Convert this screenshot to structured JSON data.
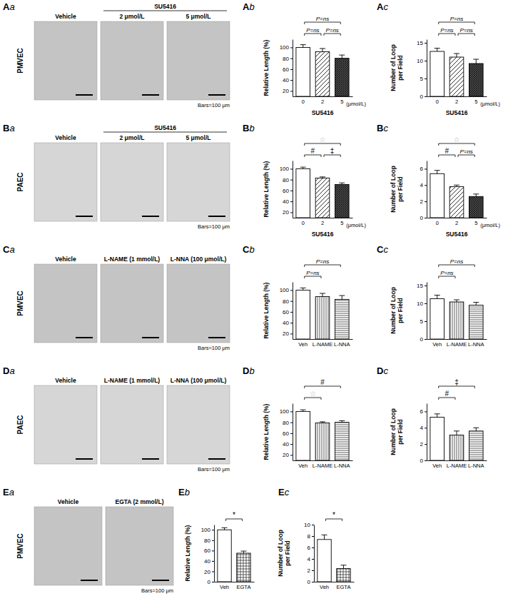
{
  "images": [
    {
      "panel": "Aa",
      "row_label": "PMVEC",
      "columns": [
        "Vehicle",
        "2 μmol/L",
        "5 μmol/L"
      ],
      "group": {
        "label": "SU5416",
        "columns": [
          "2 μmol/L",
          "5 μmol/L"
        ]
      },
      "scale_bar": "Bars=100 μm"
    },
    {
      "panel": "Ba",
      "row_label": "PAEC",
      "columns": [
        "Vehicle",
        "2 μmol/L",
        "5 μmol/L"
      ],
      "group": {
        "label": "SU5416",
        "columns": [
          "2 μmol/L",
          "5 μmol/L"
        ]
      },
      "scale_bar": "Bars=100 μm"
    },
    {
      "panel": "Ca",
      "row_label": "PMVEC",
      "columns": [
        "Vehicle",
        "L-NAME (1 mmol/L)",
        "L-NNA (100 μmol/L)"
      ],
      "scale_bar": "Bars=100 μm"
    },
    {
      "panel": "Da",
      "row_label": "PAEC",
      "columns": [
        "Vehicle",
        "L-NAME (1 mmol/L)",
        "L-NNA (100 μmol/L)"
      ],
      "scale_bar": "Bars=100 μm"
    },
    {
      "panel": "Ea",
      "row_label": "PMVEC",
      "columns": [
        "Vehicle",
        "EGTA (2 mmol/L)"
      ],
      "scale_bar": "Bars=100 μm"
    }
  ],
  "chart_data": [
    {
      "panel": "Ab",
      "type": "bar",
      "y_label": "Relative Length (%)",
      "x_label": "SU5416",
      "x_unit": "(μmol/L)",
      "categories": [
        "0",
        "2",
        "5"
      ],
      "values": [
        100,
        92,
        80
      ],
      "errors": [
        5,
        6,
        6
      ],
      "ylim": [
        10,
        115
      ],
      "yticks": [
        20,
        40,
        60,
        80,
        100
      ],
      "annotations": [
        {
          "between": [
            "0",
            "5"
          ],
          "label": "P=ns"
        },
        {
          "between": [
            "0",
            "2"
          ],
          "label": "P=ns"
        },
        {
          "between": [
            "2",
            "5"
          ],
          "label": "P=ns"
        }
      ]
    },
    {
      "panel": "Ac",
      "type": "bar",
      "y_label": "Number of Loop per Field",
      "x_label": "SU5416",
      "x_unit": "(μmol/L)",
      "categories": [
        "0",
        "2",
        "5"
      ],
      "values": [
        12.6,
        11,
        9.2
      ],
      "errors": [
        0.9,
        1,
        1.2
      ],
      "ylim": [
        0,
        16
      ],
      "yticks": [
        0,
        5,
        10,
        15
      ],
      "annotations": [
        {
          "between": [
            "0",
            "5"
          ],
          "label": "P=ns"
        },
        {
          "between": [
            "0",
            "2"
          ],
          "label": "P=ns"
        },
        {
          "between": [
            "2",
            "5"
          ],
          "label": "P=ns"
        }
      ]
    },
    {
      "panel": "Bb",
      "type": "bar",
      "y_label": "Relative Length (%)",
      "x_label": "SU5416",
      "x_unit": "(μmol/L)",
      "categories": [
        "0",
        "2",
        "5"
      ],
      "values": [
        100,
        83,
        71
      ],
      "errors": [
        3,
        2,
        3
      ],
      "ylim": [
        10,
        115
      ],
      "yticks": [
        20,
        40,
        60,
        80,
        100
      ],
      "annotations": [
        {
          "between": [
            "0",
            "5"
          ],
          "label": "☆"
        },
        {
          "between": [
            "0",
            "2"
          ],
          "label": "#"
        },
        {
          "between": [
            "2",
            "5"
          ],
          "label": "‡"
        }
      ]
    },
    {
      "panel": "Bc",
      "type": "bar",
      "y_label": "Number of Loop per Field",
      "x_label": "SU5416",
      "x_unit": "(μmol/L)",
      "categories": [
        "0",
        "2",
        "5"
      ],
      "values": [
        5.4,
        3.8,
        2.6
      ],
      "errors": [
        0.4,
        0.2,
        0.3
      ],
      "ylim": [
        0,
        7
      ],
      "yticks": [
        0,
        2,
        4,
        6
      ],
      "annotations": [
        {
          "between": [
            "0",
            "5"
          ],
          "label": "☆"
        },
        {
          "between": [
            "0",
            "2"
          ],
          "label": "#"
        },
        {
          "between": [
            "2",
            "5"
          ],
          "label": "P=ns"
        }
      ]
    },
    {
      "panel": "Cb",
      "type": "bar",
      "y_label": "Relative Length (%)",
      "categories": [
        "Veh",
        "L-NAME",
        "L-NNA"
      ],
      "values": [
        100,
        88,
        83
      ],
      "errors": [
        4,
        6,
        7
      ],
      "ylim": [
        10,
        115
      ],
      "yticks": [
        20,
        40,
        60,
        80,
        100
      ],
      "annotations": [
        {
          "between": [
            "Veh",
            "L-NNA"
          ],
          "label": "P=ns"
        },
        {
          "between": [
            "Veh",
            "L-NAME"
          ],
          "label": "P=ns"
        }
      ]
    },
    {
      "panel": "Cc",
      "type": "bar",
      "y_label": "Number of Loop per Field",
      "categories": [
        "Veh",
        "L-NAME",
        "L-NNA"
      ],
      "values": [
        11.3,
        10.4,
        9.5
      ],
      "errors": [
        1,
        0.6,
        0.8
      ],
      "ylim": [
        0,
        16
      ],
      "yticks": [
        0,
        5,
        10,
        15
      ],
      "annotations": [
        {
          "between": [
            "Veh",
            "L-NNA"
          ],
          "label": "P=ns"
        },
        {
          "between": [
            "Veh",
            "L-NAME"
          ],
          "label": "P=ns"
        }
      ]
    },
    {
      "panel": "Db",
      "type": "bar",
      "y_label": "Relative Length (%)",
      "categories": [
        "Veh",
        "L-NAME",
        "L-NNA"
      ],
      "values": [
        100,
        79,
        80
      ],
      "errors": [
        3,
        2,
        3
      ],
      "ylim": [
        10,
        115
      ],
      "yticks": [
        20,
        40,
        60,
        80,
        100
      ],
      "annotations": [
        {
          "between": [
            "Veh",
            "L-NNA"
          ],
          "label": "#"
        },
        {
          "between": [
            "Veh",
            "L-NAME"
          ],
          "label": "☆"
        }
      ]
    },
    {
      "panel": "Dc",
      "type": "bar",
      "y_label": "Number of Loop per Field",
      "categories": [
        "Veh",
        "L-NAME",
        "L-NNA"
      ],
      "values": [
        5.3,
        3.1,
        3.6
      ],
      "errors": [
        0.4,
        0.5,
        0.4
      ],
      "ylim": [
        0,
        7
      ],
      "yticks": [
        0,
        2,
        4,
        6
      ],
      "annotations": [
        {
          "between": [
            "Veh",
            "L-NNA"
          ],
          "label": "‡"
        },
        {
          "between": [
            "Veh",
            "L-NAME"
          ],
          "label": "#"
        }
      ]
    },
    {
      "panel": "Eb",
      "type": "bar",
      "y_label": "Relative Length (%)",
      "categories": [
        "Veh",
        "EGTA"
      ],
      "values": [
        100,
        55
      ],
      "errors": [
        4,
        4
      ],
      "ylim": [
        0,
        110
      ],
      "yticks": [
        0,
        20,
        40,
        60,
        80,
        100
      ],
      "annotations": [
        {
          "between": [
            "Veh",
            "EGTA"
          ],
          "label": "*"
        }
      ]
    },
    {
      "panel": "Ec",
      "type": "bar",
      "y_label": "Number of Loop per Field",
      "categories": [
        "Veh",
        "EGTA"
      ],
      "values": [
        7.4,
        2.3
      ],
      "errors": [
        0.8,
        0.6
      ],
      "ylim": [
        0,
        10
      ],
      "yticks": [
        0,
        2,
        4,
        6,
        8,
        10
      ],
      "annotations": [
        {
          "between": [
            "Veh",
            "EGTA"
          ],
          "label": "*"
        }
      ]
    }
  ]
}
